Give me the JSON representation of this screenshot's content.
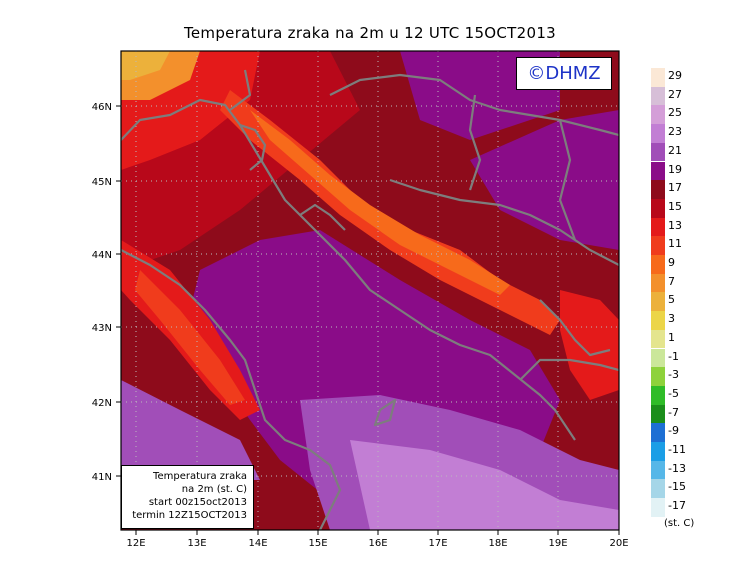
{
  "title": "Temperatura zraka na 2m u 12 UTC 15OCT2013",
  "watermark": "©DHMZ",
  "infobox": {
    "line1": "Temperatura zraka",
    "line2": "na 2m (st. C)",
    "line3": "start 00z15oct2013",
    "line4": "termin 12Z15OCT2013"
  },
  "legend": {
    "units": "(st. C)",
    "labels": [
      "29",
      "27",
      "25",
      "23",
      "21",
      "19",
      "17",
      "15",
      "13",
      "11",
      "9",
      "7",
      "5",
      "3",
      "1",
      "-1",
      "-3",
      "-5",
      "-7",
      "-9",
      "-11",
      "-13",
      "-15",
      "-17"
    ],
    "colors": [
      "#fbe8d6",
      "#d7bfd8",
      "#d49ed8",
      "#c27ed4",
      "#a14eb8",
      "#8a0c88",
      "#8e0b1b",
      "#b8081a",
      "#e41a1a",
      "#f03c1c",
      "#f76a1b",
      "#f3902c",
      "#ecb13b",
      "#ecd548",
      "#e4e58e",
      "#cbe79a",
      "#8ed23b",
      "#2fbc28",
      "#1b8e1b",
      "#1d6fd4",
      "#1b9ee6",
      "#56b7e8",
      "#a5d6e8",
      "#e2f2f5"
    ]
  },
  "axes": {
    "lon_labels": [
      "12E",
      "13E",
      "14E",
      "15E",
      "16E",
      "17E",
      "18E",
      "19E",
      "20E"
    ],
    "lat_labels": [
      "41N",
      "42N",
      "43N",
      "44N",
      "45N",
      "46N"
    ]
  },
  "colors": {
    "frame": "#000000",
    "coast": "#7d7d7d",
    "grid": "#bbbbbb"
  }
}
